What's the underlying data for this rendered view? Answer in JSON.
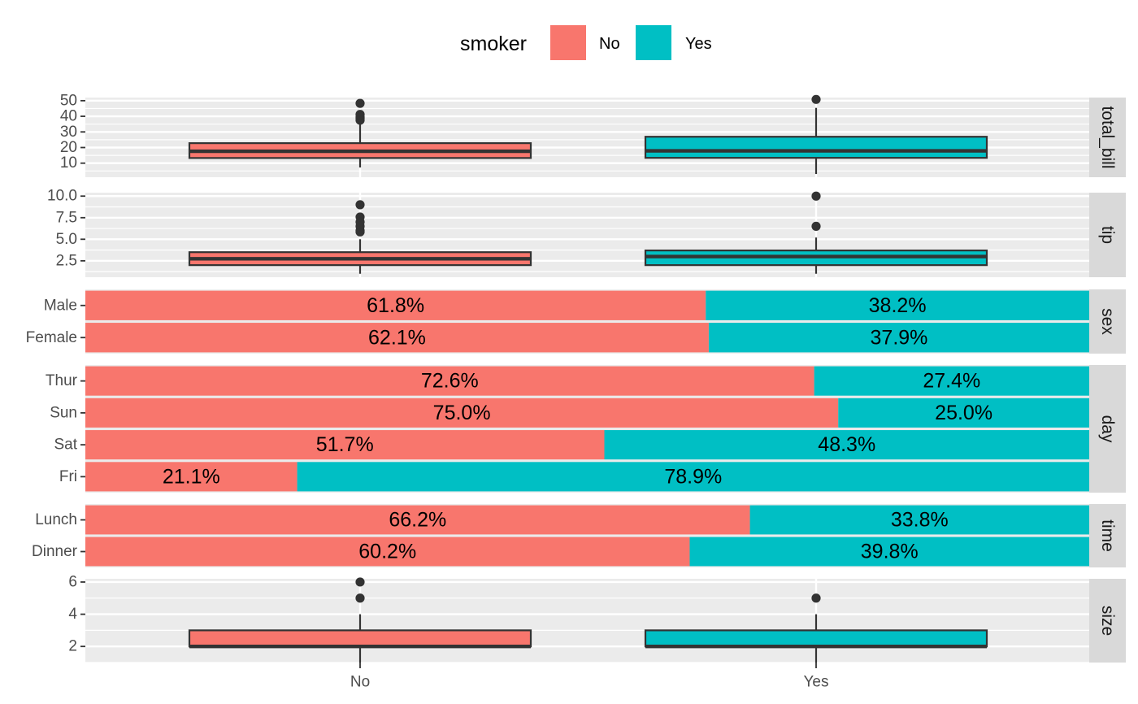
{
  "chart_data": {
    "type": "faceted-bar-and-box",
    "legend": {
      "title": "smoker",
      "placement": "top",
      "entries": [
        {
          "label": "No",
          "color": "#F8766D"
        },
        {
          "label": "Yes",
          "color": "#00BFC4"
        }
      ]
    },
    "x_axis": {
      "ticks": [
        "No",
        "Yes"
      ]
    },
    "panel_background": "#EBEBEB",
    "strip_background": "#D9D9D9",
    "grid": true,
    "panels": [
      {
        "strip": "total_bill",
        "kind": "box",
        "ylim": [
          1,
          52
        ],
        "yticks": [
          10,
          20,
          30,
          40,
          50
        ],
        "ytick_labels": [
          "10",
          "20",
          "30",
          "40",
          "50"
        ],
        "boxes": [
          {
            "group": "No",
            "whisker_low": 7.25,
            "q1": 13.3,
            "median": 17.6,
            "q3": 22.8,
            "whisker_high": 36.0,
            "outliers": [
              37.5,
              38.7,
              39.5,
              41.2,
              48.3
            ]
          },
          {
            "group": "Yes",
            "whisker_low": 3.07,
            "q1": 13.4,
            "median": 17.9,
            "q3": 26.9,
            "whisker_high": 45.4,
            "outliers": [
              50.8
            ]
          }
        ]
      },
      {
        "strip": "tip",
        "kind": "box",
        "ylim": [
          0.6,
          10.4
        ],
        "yticks": [
          2.5,
          5.0,
          7.5,
          10.0
        ],
        "ytick_labels": [
          "2.5",
          "5.0",
          "7.5",
          "10.0"
        ],
        "boxes": [
          {
            "group": "No",
            "whisker_low": 1.0,
            "q1": 2.0,
            "median": 2.74,
            "q3": 3.5,
            "whisker_high": 5.0,
            "outliers": [
              5.85,
              6.0,
              6.5,
              7.0,
              7.58,
              9.0
            ]
          },
          {
            "group": "Yes",
            "whisker_low": 1.0,
            "q1": 2.0,
            "median": 3.0,
            "q3": 3.7,
            "whisker_high": 5.2,
            "outliers": [
              6.5,
              10.0
            ]
          }
        ]
      },
      {
        "strip": "sex",
        "kind": "stacked-percent",
        "rows": [
          {
            "label": "Male",
            "no": 61.8,
            "yes": 38.2,
            "no_text": "61.8%",
            "yes_text": "38.2%"
          },
          {
            "label": "Female",
            "no": 62.1,
            "yes": 37.9,
            "no_text": "62.1%",
            "yes_text": "37.9%"
          }
        ]
      },
      {
        "strip": "day",
        "kind": "stacked-percent",
        "rows": [
          {
            "label": "Thur",
            "no": 72.6,
            "yes": 27.4,
            "no_text": "72.6%",
            "yes_text": "27.4%"
          },
          {
            "label": "Sun",
            "no": 75.0,
            "yes": 25.0,
            "no_text": "75.0%",
            "yes_text": "25.0%"
          },
          {
            "label": "Sat",
            "no": 51.7,
            "yes": 48.3,
            "no_text": "51.7%",
            "yes_text": "48.3%"
          },
          {
            "label": "Fri",
            "no": 21.1,
            "yes": 78.9,
            "no_text": "21.1%",
            "yes_text": "78.9%"
          }
        ]
      },
      {
        "strip": "time",
        "kind": "stacked-percent",
        "rows": [
          {
            "label": "Lunch",
            "no": 66.2,
            "yes": 33.8,
            "no_text": "66.2%",
            "yes_text": "33.8%"
          },
          {
            "label": "Dinner",
            "no": 60.2,
            "yes": 39.8,
            "no_text": "60.2%",
            "yes_text": "39.8%"
          }
        ]
      },
      {
        "strip": "size",
        "kind": "box",
        "ylim": [
          1.0,
          6.2
        ],
        "yticks": [
          2,
          4,
          6
        ],
        "ytick_labels": [
          "2",
          "4",
          "6"
        ],
        "boxes": [
          {
            "group": "No",
            "whisker_low": 1,
            "q1": 2,
            "median": 2,
            "q3": 3,
            "whisker_high": 4,
            "outliers": [
              5,
              6
            ]
          },
          {
            "group": "Yes",
            "whisker_low": 1,
            "q1": 2,
            "median": 2,
            "q3": 3,
            "whisker_high": 4,
            "outliers": [
              5
            ]
          }
        ]
      }
    ]
  }
}
